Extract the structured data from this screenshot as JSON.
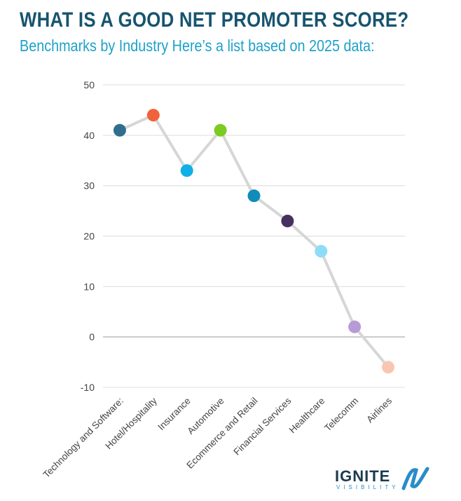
{
  "chart_data": {
    "type": "line",
    "title": "WHAT IS A GOOD NET PROMOTER SCORE?",
    "subtitle": "Benchmarks by Industry Here’s a list based on 2025 data:",
    "categories": [
      "Technology and Software:",
      "Hotel/Hospitality",
      "Insurance",
      "Automotive",
      "Ecommerce and Retail",
      "Financial Services",
      "Healthcare",
      "Telecomm",
      "Airlines"
    ],
    "values": [
      41,
      44,
      33,
      41,
      28,
      23,
      17,
      2,
      -6
    ],
    "point_colors": [
      "#2f6e8f",
      "#f2623a",
      "#0fb0e8",
      "#7ccb22",
      "#0f8db8",
      "#45305f",
      "#8fdcf7",
      "#b89ad6",
      "#f9c6b2"
    ],
    "line_color": "#d6d6d6",
    "ylim": [
      -10,
      50
    ],
    "yticks": [
      -10,
      0,
      10,
      20,
      30,
      40,
      50
    ],
    "grid": true,
    "xlabel": "",
    "ylabel": ""
  },
  "logo": {
    "main": "IGNITE",
    "sub": "VISIBILITY"
  }
}
